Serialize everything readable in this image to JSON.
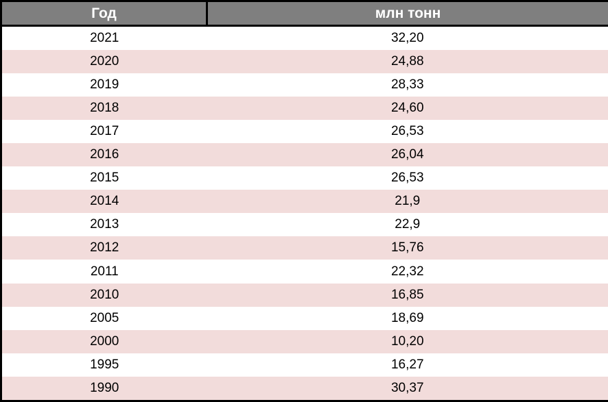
{
  "chart_data": {
    "type": "table",
    "columns": [
      "Год",
      "млн тонн"
    ],
    "rows": [
      [
        "2021",
        "32,20"
      ],
      [
        "2020",
        "24,88"
      ],
      [
        "2019",
        "28,33"
      ],
      [
        "2018",
        "24,60"
      ],
      [
        "2017",
        "26,53"
      ],
      [
        "2016",
        "26,04"
      ],
      [
        "2015",
        "26,53"
      ],
      [
        "2014",
        "21,9"
      ],
      [
        "2013",
        "22,9"
      ],
      [
        "2012",
        "15,76"
      ],
      [
        "2011",
        "22,32"
      ],
      [
        "2010",
        "16,85"
      ],
      [
        "2005",
        "18,69"
      ],
      [
        "2000",
        "10,20"
      ],
      [
        "1995",
        "16,27"
      ],
      [
        "1990",
        "30,37"
      ]
    ]
  },
  "colors": {
    "header_bg": "#7f7f7f",
    "header_text": "#ffffff",
    "stripe_bg": "#f2dcdb",
    "row_bg": "#ffffff",
    "body_text": "#000000",
    "border": "#000000"
  }
}
